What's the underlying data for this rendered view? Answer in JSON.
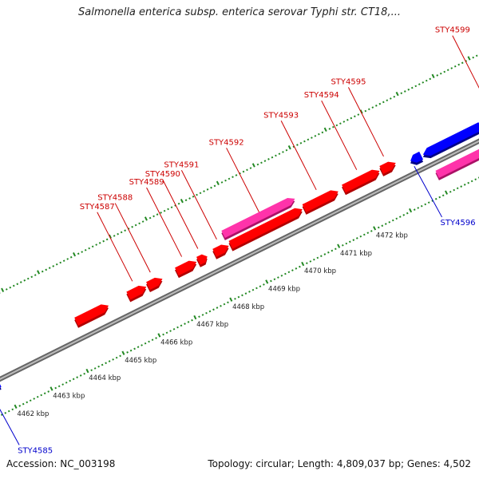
{
  "title": "Salmonella enterica subsp. enterica serovar Typhi str. CT18,...",
  "accession": "Accession: NC_003198",
  "summary": "Topology: circular; Length: 4,809,037 bp; Genes: 4,502",
  "colors": {
    "forward_gene": "#ff0000",
    "forward_gene_dark": "#b00000",
    "reverse_gene": "#0000ff",
    "pseudo_gene": "#ff33aa",
    "backbone": "#888888",
    "tick": "#228822",
    "forward_label": "#cc0000",
    "reverse_label": "#0000cc"
  },
  "axis": {
    "unit": "kbp",
    "ticks": [
      {
        "kb": 4462,
        "label": "4462 kbp"
      },
      {
        "kb": 4463,
        "label": "4463 kbp"
      },
      {
        "kb": 4464,
        "label": "4464 kbp"
      },
      {
        "kb": 4465,
        "label": "4465 kbp"
      },
      {
        "kb": 4466,
        "label": "4466 kbp"
      },
      {
        "kb": 4467,
        "label": "4467 kbp"
      },
      {
        "kb": 4468,
        "label": "4468 kbp"
      },
      {
        "kb": 4469,
        "label": "4469 kbp"
      },
      {
        "kb": 4470,
        "label": "4470 kbp"
      },
      {
        "kb": 4471,
        "label": "4471 kbp"
      },
      {
        "kb": 4472,
        "label": "4472 kbp"
      }
    ]
  },
  "genes": [
    {
      "label": "STY4585",
      "strand": "reverse",
      "start": 4461.55,
      "end": 4461.9
    },
    {
      "label": "",
      "strand": "forward",
      "start": 4464.3,
      "end": 4465.2
    },
    {
      "label": "STY4587",
      "strand": "forward",
      "start": 4465.75,
      "end": 4466.25
    },
    {
      "label": "STY4588",
      "strand": "forward",
      "start": 4466.3,
      "end": 4466.7
    },
    {
      "label": "STY4589",
      "strand": "forward",
      "start": 4467.1,
      "end": 4467.65
    },
    {
      "label": "STY4590",
      "strand": "forward",
      "start": 4467.7,
      "end": 4467.95
    },
    {
      "label": "STY4591",
      "strand": "forward",
      "start": 4468.15,
      "end": 4468.55
    },
    {
      "label": "STY4592",
      "strand": "forward",
      "start": 4468.6,
      "end": 4470.6
    },
    {
      "label": "",
      "strand": "pseudo",
      "start": 4468.55,
      "end": 4470.55
    },
    {
      "label": "STY4593",
      "strand": "forward",
      "start": 4470.65,
      "end": 4471.6
    },
    {
      "label": "STY4594",
      "strand": "forward",
      "start": 4471.75,
      "end": 4472.75
    },
    {
      "label": "STY4595",
      "strand": "forward",
      "start": 4472.8,
      "end": 4473.2
    },
    {
      "label": "STY4596",
      "strand": "reverse",
      "start": 4473.55,
      "end": 4473.85
    },
    {
      "label": "",
      "strand": "reverse",
      "start": 4473.9,
      "end": 4475.5
    },
    {
      "label": "",
      "strand": "pseudo",
      "start": 4474.0,
      "end": 4475.5
    },
    {
      "label": "STY4599",
      "strand": "forward",
      "start": 4475.6,
      "end": 4476.2
    }
  ]
}
